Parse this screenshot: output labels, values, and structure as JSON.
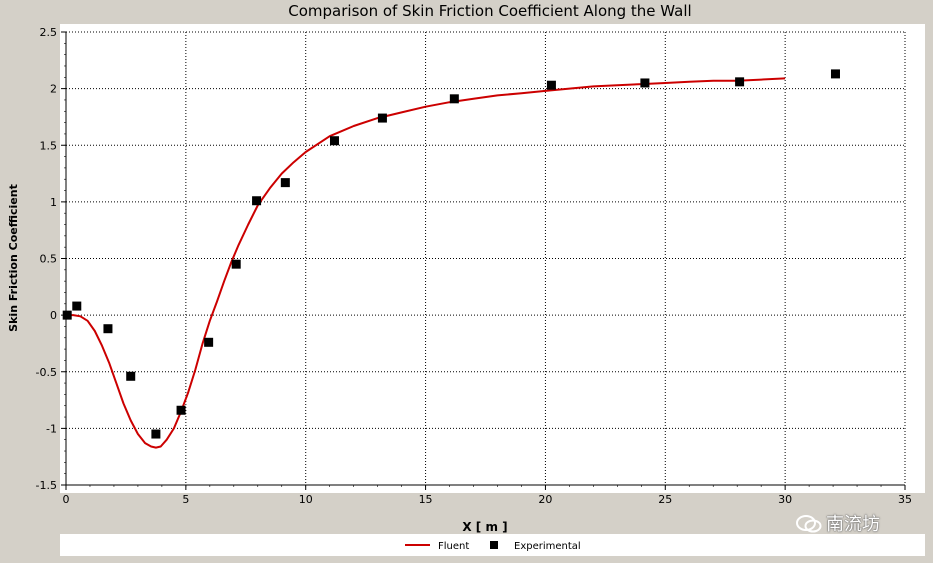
{
  "chart_data": {
    "type": "line",
    "title": "Comparison of Skin Friction Coefficient Along the Wall",
    "xlabel": "X [ m ]",
    "ylabel": "Skin Friction Coefficient",
    "xlim": [
      0,
      35
    ],
    "ylim": [
      -1.5,
      2.5
    ],
    "xticks": [
      0,
      5,
      10,
      15,
      20,
      25,
      30,
      35
    ],
    "yticks": [
      -1.5,
      -1,
      -0.5,
      0,
      0.5,
      1,
      1.5,
      2,
      2.5
    ],
    "grid": true,
    "legend_position": "bottom",
    "series": [
      {
        "name": "Fluent",
        "kind": "line",
        "color": "#cc0000",
        "x": [
          0,
          0.3,
          0.6,
          0.9,
          1.2,
          1.5,
          1.8,
          2.1,
          2.4,
          2.7,
          3.0,
          3.3,
          3.55,
          3.75,
          3.95,
          4.2,
          4.5,
          4.8,
          5.1,
          5.4,
          5.7,
          6.0,
          6.3,
          6.6,
          6.9,
          7.2,
          7.6,
          8.0,
          8.5,
          9.0,
          9.5,
          10,
          11,
          12,
          13,
          14,
          15,
          16,
          17,
          18,
          19,
          20,
          21,
          22,
          23,
          24,
          25,
          26,
          27,
          28,
          29,
          30
        ],
        "y": [
          0.0,
          0.0,
          -0.01,
          -0.05,
          -0.14,
          -0.27,
          -0.42,
          -0.6,
          -0.78,
          -0.93,
          -1.05,
          -1.13,
          -1.16,
          -1.17,
          -1.16,
          -1.1,
          -1.0,
          -0.85,
          -0.68,
          -0.48,
          -0.25,
          -0.05,
          0.12,
          0.3,
          0.47,
          0.62,
          0.8,
          0.97,
          1.12,
          1.25,
          1.35,
          1.44,
          1.58,
          1.67,
          1.74,
          1.79,
          1.84,
          1.88,
          1.91,
          1.94,
          1.96,
          1.98,
          2.0,
          2.02,
          2.03,
          2.04,
          2.05,
          2.06,
          2.07,
          2.07,
          2.08,
          2.09
        ]
      },
      {
        "name": "Experimental",
        "kind": "scatter",
        "color": "#000000",
        "x": [
          0.05,
          0.45,
          1.75,
          2.7,
          3.75,
          4.8,
          5.95,
          7.1,
          7.95,
          9.15,
          11.2,
          13.2,
          16.2,
          20.25,
          24.15,
          28.1,
          32.1
        ],
        "y": [
          0.0,
          0.08,
          -0.12,
          -0.54,
          -1.05,
          -0.84,
          -0.24,
          0.45,
          1.01,
          1.17,
          1.54,
          1.74,
          1.91,
          2.03,
          2.05,
          2.06,
          2.13
        ]
      }
    ]
  },
  "watermark": {
    "text": "南流坊"
  }
}
